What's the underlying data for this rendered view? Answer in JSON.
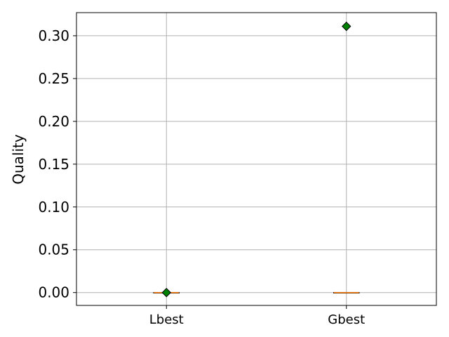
{
  "chart_data": {
    "type": "box",
    "title": "",
    "xlabel": "",
    "ylabel": "Quality",
    "ylim": [
      -0.015,
      0.327
    ],
    "yticks": [
      "0.00",
      "0.05",
      "0.10",
      "0.15",
      "0.20",
      "0.25",
      "0.30"
    ],
    "ytick_values": [
      0.0,
      0.05,
      0.1,
      0.15,
      0.2,
      0.25,
      0.3
    ],
    "categories": [
      "Lbest",
      "Gbest"
    ],
    "grid": true,
    "series": [
      {
        "category": "Lbest",
        "min": 0.0,
        "q1": 0.0,
        "median": 0.0,
        "q3": 0.0,
        "max": 0.0,
        "outliers": [],
        "mean": 0.0
      },
      {
        "category": "Gbest",
        "min": 0.0,
        "q1": 0.0,
        "median": 0.0,
        "q3": 0.0,
        "max": 0.0,
        "outliers": [],
        "mean": 0.311
      }
    ],
    "colors": {
      "median": "#ff7f0e",
      "mean_marker": "#008000",
      "grid": "#b0b0b0",
      "box": "#000000"
    }
  }
}
